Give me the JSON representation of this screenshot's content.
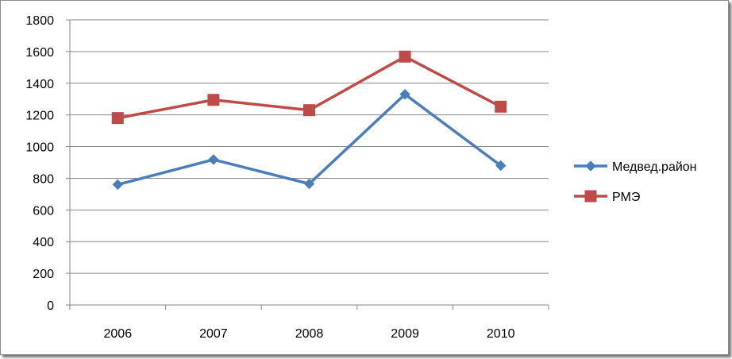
{
  "chart_data": {
    "type": "line",
    "categories": [
      "2006",
      "2007",
      "2008",
      "2009",
      "2010"
    ],
    "ylim": [
      0,
      1800
    ],
    "yticks": [
      0,
      200,
      400,
      600,
      800,
      1000,
      1200,
      1400,
      1600,
      1800
    ],
    "ytick_labels": [
      "0",
      "200",
      "400",
      "600",
      "800",
      "1000",
      "1200",
      "1400",
      "1600",
      "1800"
    ],
    "grid": "horizontal",
    "legend_position": "right",
    "series": [
      {
        "name": "Медвед.район",
        "values": [
          760,
          918,
          765,
          1330,
          880
        ],
        "color": "#4a7ebb",
        "marker": "diamond"
      },
      {
        "name": "РМЭ",
        "values": [
          1180,
          1295,
          1230,
          1568,
          1252
        ],
        "color": "#be4b48",
        "marker": "square"
      }
    ]
  }
}
